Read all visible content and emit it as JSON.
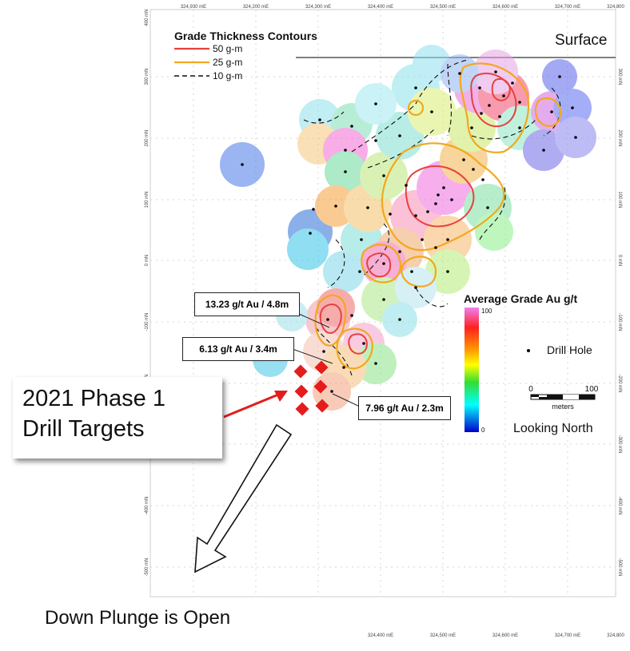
{
  "legend_contours": {
    "title": "Grade Thickness Contours",
    "items": [
      {
        "label": "50 g-m",
        "color": "#e8413c",
        "style": "solid"
      },
      {
        "label": "25 g-m",
        "color": "#f2a81d",
        "style": "solid"
      },
      {
        "label": "10 g-m",
        "color": "#111111",
        "style": "dashed"
      }
    ]
  },
  "surface_label": "Surface",
  "grade_legend": {
    "title": "Average Grade Au g/t",
    "max_label": "100",
    "min_label": "0",
    "colors": [
      "#f07ff0",
      "#ff2020",
      "#ff9a00",
      "#ffff00",
      "#33dd33",
      "#00ffff",
      "#0000cc"
    ]
  },
  "drill_hole_label": "Drill Hole",
  "scale_bar": {
    "start": "0",
    "end": "100",
    "unit": "meters"
  },
  "looking_north": "Looking North",
  "callouts": [
    {
      "text": "13.23 g/t Au / 4.8m"
    },
    {
      "text": "6.13 g/t Au / 3.4m"
    },
    {
      "text": "7.96 g/t Au / 2.3m"
    }
  ],
  "targets_label": {
    "line1": "2021 Phase 1",
    "line2": "Drill Targets"
  },
  "down_plunge": "Down Plunge is Open",
  "axis": {
    "easting_ticks": [
      "324,930 mE",
      "324,200 mE",
      "324,300 mE",
      "324,400 mE",
      "324,500 mE",
      "324,600 mE",
      "324,700 mE",
      "324,800"
    ],
    "northing_ticks": [
      "400 mN",
      "300 mN",
      "200 mN",
      "100 mN",
      "0 mN",
      "-100 mN",
      "-200 mN",
      "-300 mN",
      "-400 mN",
      "-500 mN"
    ]
  }
}
